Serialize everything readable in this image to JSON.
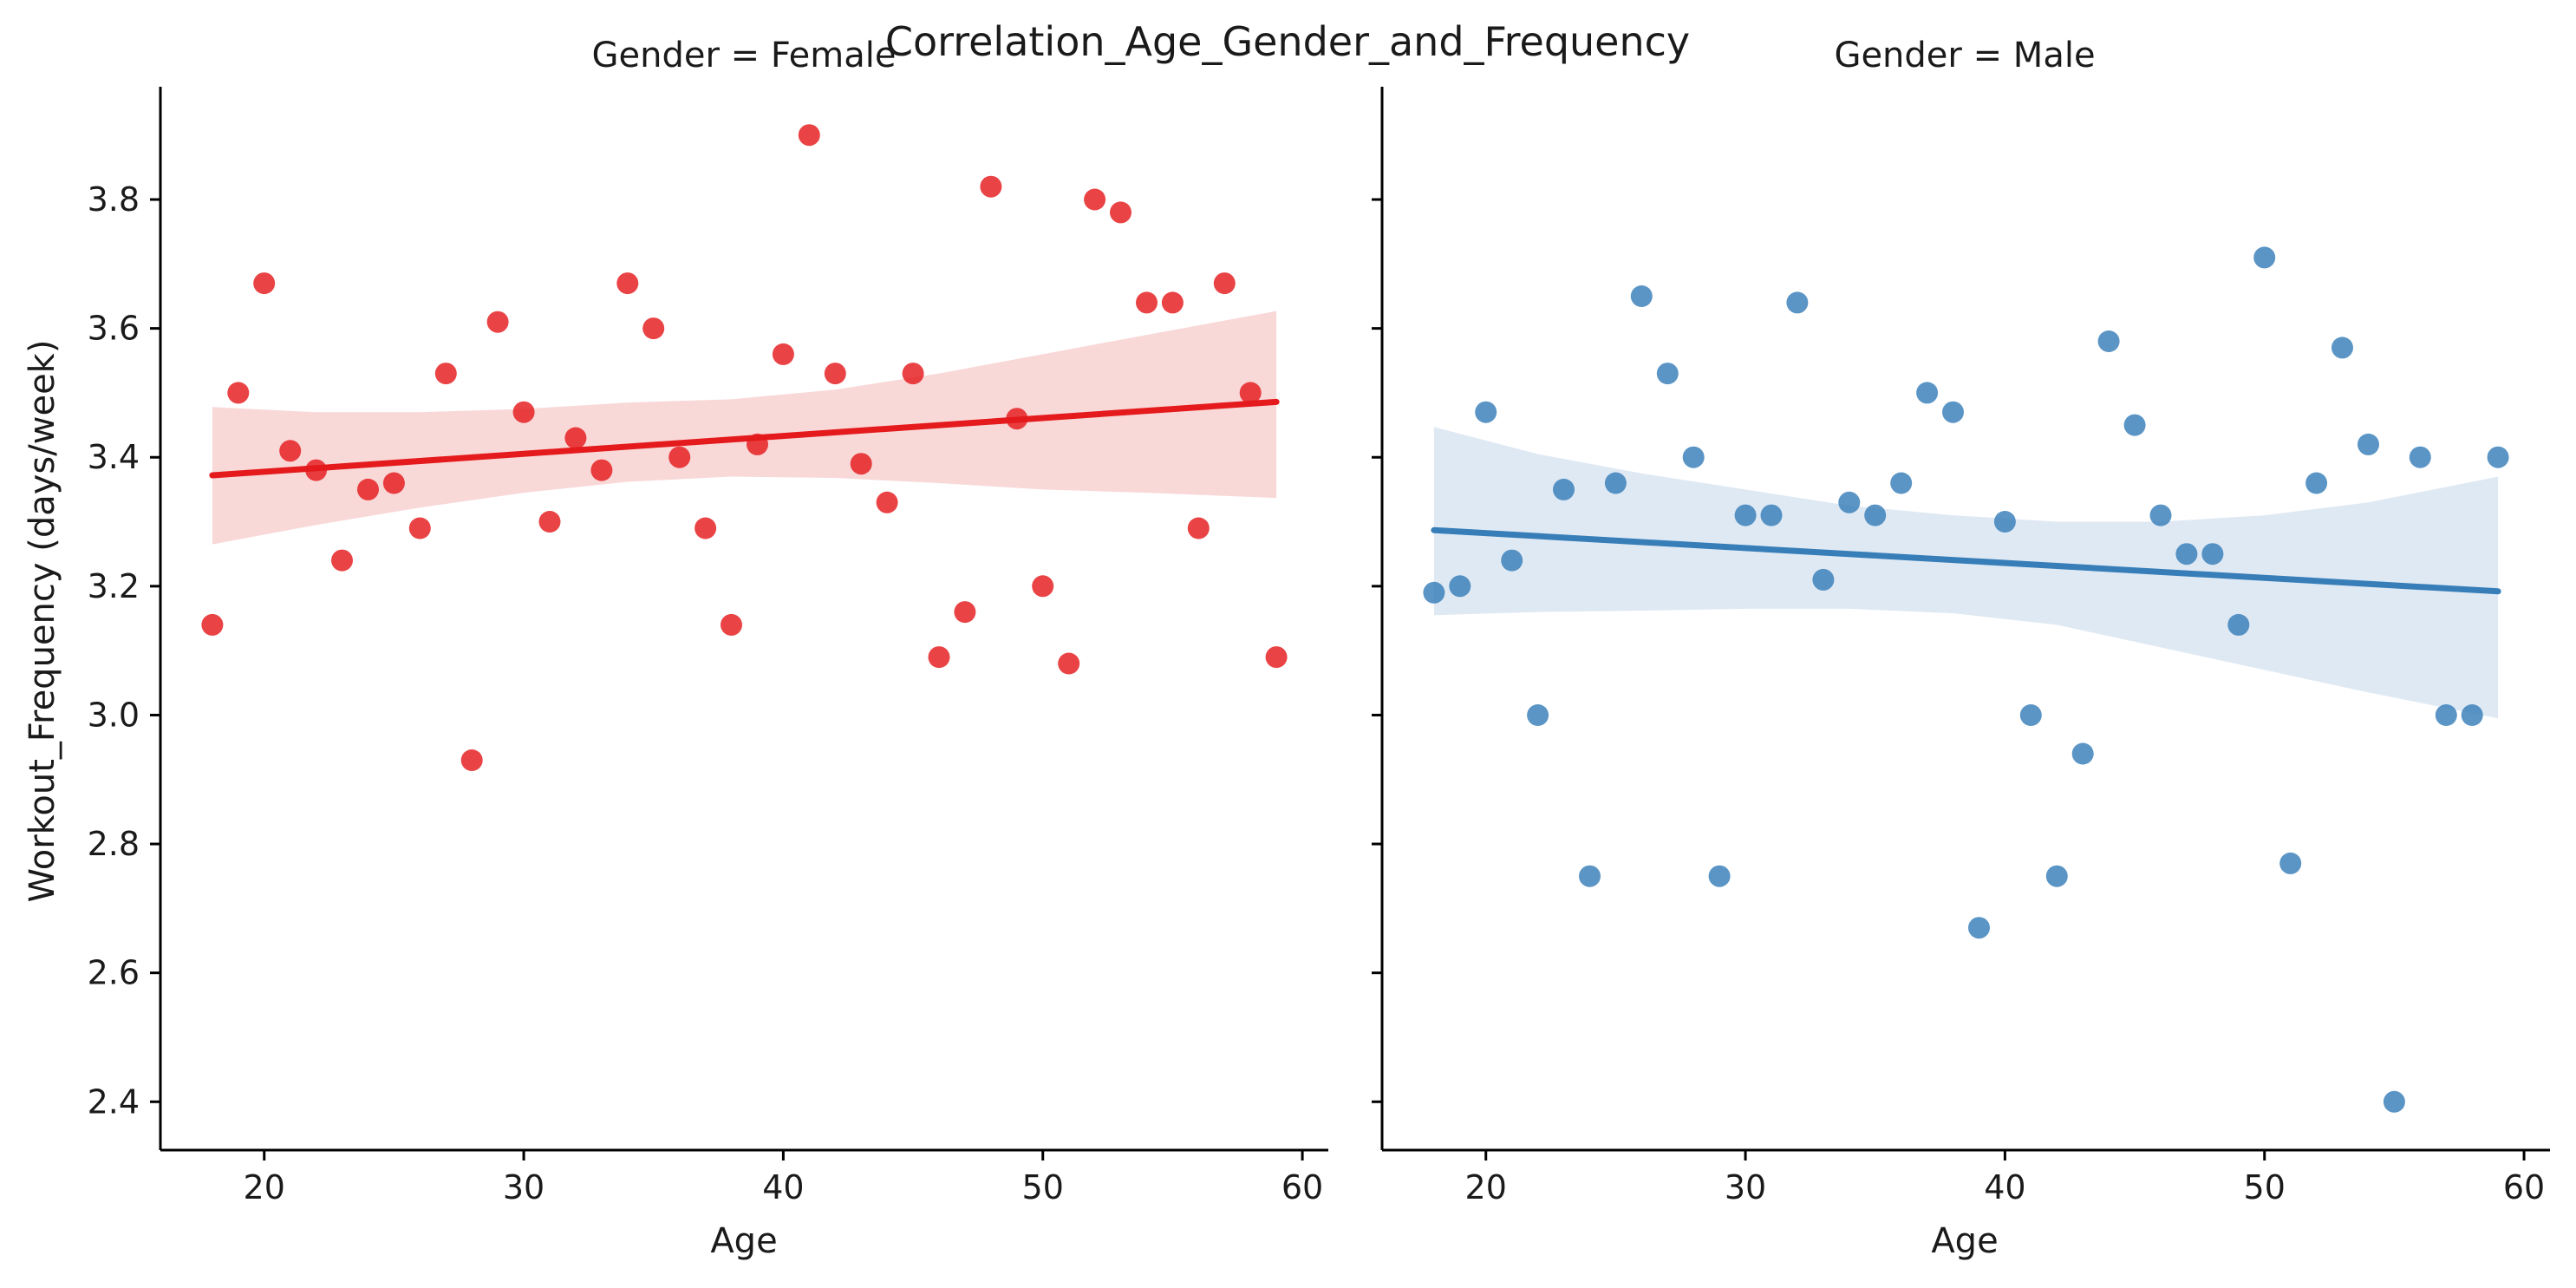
{
  "chart_data": {
    "type": "scatter",
    "title": "Correlation_Age_Gender_and_Frequency",
    "ylabel": "Workout_Frequency (days/week)",
    "xlabel": "Age",
    "xlim": [
      16,
      61
    ],
    "ylim": [
      2.325,
      3.975
    ],
    "xticks": [
      20,
      30,
      40,
      50,
      60
    ],
    "yticks": [
      2.4,
      2.6,
      2.8,
      3.0,
      3.2,
      3.4,
      3.6,
      3.8
    ],
    "grid": false,
    "facets": [
      {
        "title": "Gender = Female",
        "color": "#e41a1c",
        "band_color": "#f9d6d6",
        "points": [
          [
            18,
            3.14
          ],
          [
            19,
            3.5
          ],
          [
            20,
            3.67
          ],
          [
            21,
            3.41
          ],
          [
            22,
            3.38
          ],
          [
            23,
            3.24
          ],
          [
            24,
            3.35
          ],
          [
            25,
            3.36
          ],
          [
            26,
            3.29
          ],
          [
            27,
            3.53
          ],
          [
            28,
            2.93
          ],
          [
            29,
            3.61
          ],
          [
            30,
            3.47
          ],
          [
            31,
            3.3
          ],
          [
            32,
            3.43
          ],
          [
            33,
            3.38
          ],
          [
            34,
            3.67
          ],
          [
            35,
            3.6
          ],
          [
            36,
            3.4
          ],
          [
            37,
            3.29
          ],
          [
            38,
            3.14
          ],
          [
            39,
            3.42
          ],
          [
            40,
            3.56
          ],
          [
            41,
            3.9
          ],
          [
            42,
            3.53
          ],
          [
            43,
            3.39
          ],
          [
            44,
            3.33
          ],
          [
            45,
            3.53
          ],
          [
            46,
            3.09
          ],
          [
            47,
            3.16
          ],
          [
            48,
            3.82
          ],
          [
            49,
            3.46
          ],
          [
            50,
            3.2
          ],
          [
            51,
            3.08
          ],
          [
            52,
            3.8
          ],
          [
            53,
            3.78
          ],
          [
            54,
            3.64
          ],
          [
            55,
            3.64
          ],
          [
            56,
            3.29
          ],
          [
            57,
            3.67
          ],
          [
            58,
            3.5
          ],
          [
            59,
            3.09
          ]
        ],
        "fit": {
          "x": [
            18,
            59
          ],
          "y": [
            3.372,
            3.486
          ]
        },
        "ci": {
          "x": [
            18,
            22,
            26,
            30,
            34,
            38,
            42,
            46,
            50,
            54,
            59
          ],
          "lower": [
            3.265,
            3.295,
            3.322,
            3.345,
            3.362,
            3.37,
            3.368,
            3.36,
            3.35,
            3.345,
            3.337
          ],
          "upper": [
            3.478,
            3.47,
            3.47,
            3.475,
            3.485,
            3.49,
            3.505,
            3.53,
            3.56,
            3.59,
            3.627
          ]
        }
      },
      {
        "title": "Gender = Male",
        "color": "#377eb8",
        "band_color": "#dde8f3",
        "points": [
          [
            18,
            3.19
          ],
          [
            19,
            3.2
          ],
          [
            20,
            3.47
          ],
          [
            21,
            3.24
          ],
          [
            22,
            3.0
          ],
          [
            23,
            3.35
          ],
          [
            24,
            2.75
          ],
          [
            25,
            3.36
          ],
          [
            26,
            3.65
          ],
          [
            27,
            3.53
          ],
          [
            28,
            3.4
          ],
          [
            29,
            2.75
          ],
          [
            30,
            3.31
          ],
          [
            31,
            3.31
          ],
          [
            32,
            3.64
          ],
          [
            33,
            3.21
          ],
          [
            34,
            3.33
          ],
          [
            35,
            3.31
          ],
          [
            36,
            3.36
          ],
          [
            37,
            3.5
          ],
          [
            38,
            3.47
          ],
          [
            39,
            2.67
          ],
          [
            40,
            3.3
          ],
          [
            41,
            3.0
          ],
          [
            42,
            2.75
          ],
          [
            43,
            2.94
          ],
          [
            44,
            3.58
          ],
          [
            45,
            3.45
          ],
          [
            46,
            3.31
          ],
          [
            47,
            3.25
          ],
          [
            48,
            3.25
          ],
          [
            49,
            3.14
          ],
          [
            50,
            3.71
          ],
          [
            51,
            2.77
          ],
          [
            52,
            3.36
          ],
          [
            53,
            3.57
          ],
          [
            54,
            3.42
          ],
          [
            55,
            2.4
          ],
          [
            56,
            3.4
          ],
          [
            57,
            3.0
          ],
          [
            58,
            3.0
          ],
          [
            59,
            3.4
          ]
        ],
        "fit": {
          "x": [
            18,
            59
          ],
          "y": [
            3.287,
            3.192
          ]
        },
        "ci": {
          "x": [
            18,
            22,
            26,
            30,
            34,
            38,
            42,
            46,
            50,
            54,
            59
          ],
          "lower": [
            3.155,
            3.16,
            3.162,
            3.165,
            3.165,
            3.158,
            3.14,
            3.105,
            3.07,
            3.035,
            2.995
          ],
          "upper": [
            3.447,
            3.405,
            3.375,
            3.35,
            3.325,
            3.31,
            3.3,
            3.3,
            3.31,
            3.33,
            3.37
          ]
        }
      }
    ]
  }
}
